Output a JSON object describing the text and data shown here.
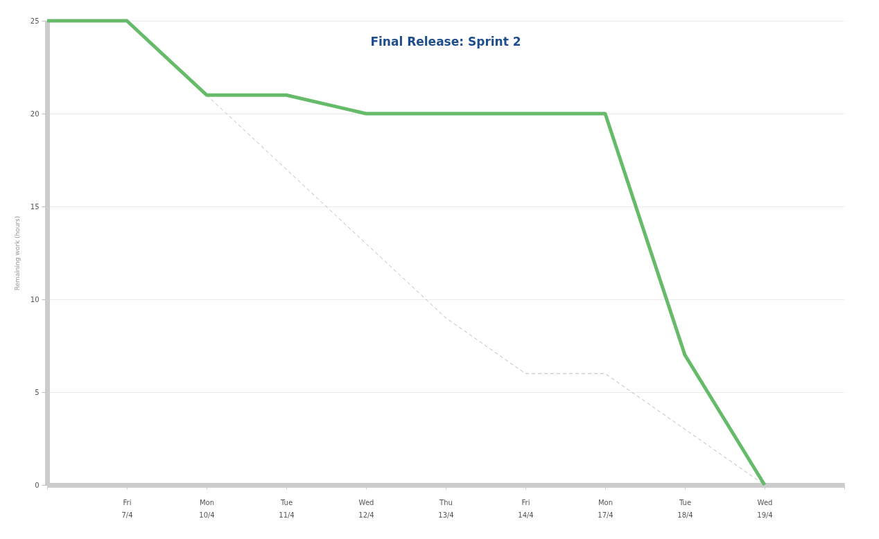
{
  "chart_data": {
    "type": "line",
    "title": "Final Release: Sprint 2",
    "ylabel": "Remaining work (hours)",
    "categories": [
      null,
      "Fri\n7/4",
      "Mon\n10/4",
      "Tue\n11/4",
      "Wed\n12/4",
      "Thu\n13/4",
      "Fri\n14/4",
      "Mon\n17/4",
      "Tue\n18/4",
      "Wed\n19/4",
      null
    ],
    "series": [
      {
        "color": "#bbbbbb",
        "line_style": "dashed",
        "values": [
          null,
          null,
          21,
          17,
          13,
          9,
          6,
          6,
          3,
          0,
          null
        ]
      },
      {
        "color": "#66bb6a",
        "line_style": "solid",
        "values": [
          25,
          25,
          21,
          21,
          20,
          20,
          20,
          20,
          7,
          0,
          null
        ]
      }
    ],
    "ylim": [
      0,
      25
    ],
    "yticks": [
      0,
      5,
      10,
      15,
      20,
      25
    ],
    "grid": "y"
  }
}
